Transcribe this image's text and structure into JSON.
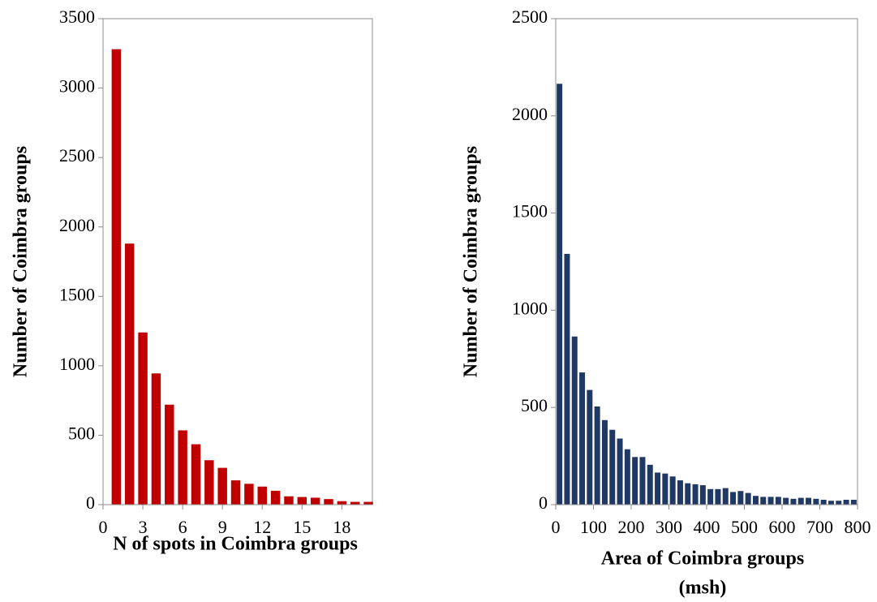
{
  "chart_data": [
    {
      "type": "bar",
      "ylabel": "Number of Coimbra groups",
      "xlabel": [
        "N of spots in Coimbra groups"
      ],
      "x": [
        1,
        2,
        3,
        4,
        5,
        6,
        7,
        8,
        9,
        10,
        11,
        12,
        13,
        14,
        15,
        16,
        17,
        18,
        19,
        20
      ],
      "values": [
        3280,
        1880,
        1240,
        945,
        720,
        535,
        435,
        320,
        265,
        175,
        150,
        130,
        100,
        60,
        55,
        50,
        40,
        25,
        20,
        20
      ],
      "color": "#c00000",
      "xlim": [
        0,
        20.3
      ],
      "xticks": [
        0,
        3,
        6,
        9,
        12,
        15,
        18
      ],
      "ylim": [
        0,
        3500
      ],
      "yticks": [
        0,
        500,
        1000,
        1500,
        2000,
        2500,
        3000,
        3500
      ]
    },
    {
      "type": "histogram",
      "ylabel": "Number of Coimbra groups",
      "xlabel": [
        "Area of Coimbra groups",
        "(msh)"
      ],
      "bins": [
        0,
        20,
        40,
        60,
        80,
        100,
        120,
        140,
        160,
        180,
        200,
        220,
        240,
        260,
        280,
        300,
        320,
        340,
        360,
        380,
        400,
        420,
        440,
        460,
        480,
        500,
        520,
        540,
        560,
        580,
        600,
        620,
        640,
        660,
        680,
        700,
        720,
        740,
        760,
        780,
        800
      ],
      "values": [
        2165,
        1290,
        865,
        680,
        590,
        505,
        435,
        385,
        340,
        285,
        245,
        245,
        205,
        165,
        160,
        145,
        125,
        110,
        105,
        100,
        80,
        80,
        85,
        65,
        70,
        60,
        45,
        40,
        40,
        40,
        35,
        30,
        35,
        35,
        30,
        25,
        20,
        20,
        25,
        25
      ],
      "color": "#1f3864",
      "xlim": [
        0,
        800
      ],
      "xticks": [
        0,
        100,
        200,
        300,
        400,
        500,
        600,
        700,
        800
      ],
      "ylim": [
        0,
        2500
      ],
      "yticks": [
        0,
        500,
        1000,
        1500,
        2000,
        2500
      ]
    }
  ]
}
